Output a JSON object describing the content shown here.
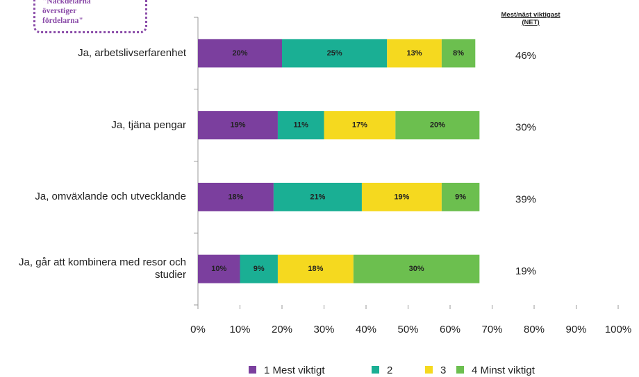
{
  "chart_data": {
    "type": "stacked_barh",
    "annotation": "\"Nackdelarna överstiger fördelarna\"",
    "categories": [
      "Ja, arbetslivserfarenhet",
      "Ja, tjäna pengar",
      "Ja, omväxlande och utvecklande",
      "Ja, går att kombinera med resor och studier"
    ],
    "series": [
      {
        "name": "1 Mest viktigt",
        "color": "#7b3f9e",
        "values": [
          20,
          19,
          18,
          10
        ],
        "value_labels": [
          "20%",
          "19%",
          "18%",
          "10%"
        ]
      },
      {
        "name": "2",
        "color": "#1aaf94",
        "values": [
          25,
          11,
          21,
          9
        ],
        "value_labels": [
          "25%",
          "11%",
          "21%",
          "9%"
        ]
      },
      {
        "name": "3",
        "color": "#f5d91f",
        "values": [
          13,
          17,
          19,
          18
        ],
        "value_labels": [
          "13%",
          "17%",
          "19%",
          "18%"
        ]
      },
      {
        "name": "4 Minst viktigt",
        "color": "#6cbf4f",
        "values": [
          8,
          20,
          9,
          30
        ],
        "value_labels": [
          "8%",
          "20%",
          "9%",
          "30%"
        ]
      }
    ],
    "net_header": "Mest/näst viktigast (NET)",
    "net_values": [
      46,
      30,
      39,
      19
    ],
    "net_labels": [
      "46%",
      "30%",
      "39%",
      "19%"
    ],
    "xlim": [
      0,
      100
    ],
    "xticks": [
      {
        "value": 0,
        "label": "0%"
      },
      {
        "value": 10,
        "label": "10%"
      },
      {
        "value": 20,
        "label": "20%"
      },
      {
        "value": 30,
        "label": "30%"
      },
      {
        "value": 40,
        "label": "40%"
      },
      {
        "value": 50,
        "label": "50%"
      },
      {
        "value": 60,
        "label": "60%"
      },
      {
        "value": 70,
        "label": "70%"
      },
      {
        "value": 80,
        "label": "80%"
      },
      {
        "value": 90,
        "label": "90%"
      },
      {
        "value": 100,
        "label": "100%"
      }
    ],
    "legend": "bottom"
  }
}
